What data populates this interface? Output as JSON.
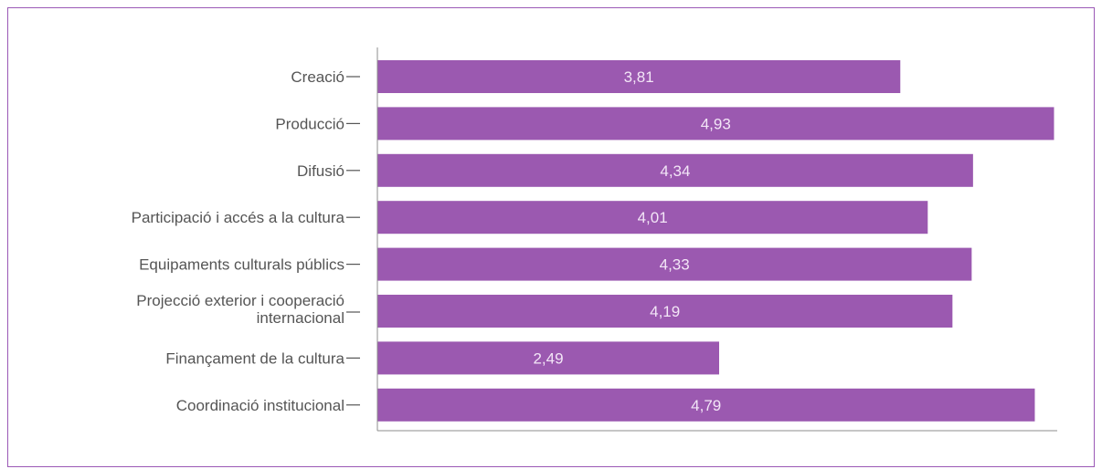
{
  "colors": {
    "bar": "#9b59b0",
    "frame": "#9b59b6",
    "axis": "#8c8c8c",
    "label_text": "#555555",
    "value_text": "#f3e6f7"
  },
  "chart_data": {
    "type": "bar",
    "orientation": "horizontal",
    "categories": [
      [
        "Creació"
      ],
      [
        "Producció"
      ],
      [
        "Difusió"
      ],
      [
        "Participació i accés a la cultura"
      ],
      [
        "Equipaments culturals públics"
      ],
      [
        "Projecció exterior i cooperació",
        "internacional"
      ],
      [
        "Finançament de la cultura"
      ],
      [
        "Coordinació institucional"
      ]
    ],
    "values": [
      3.81,
      4.93,
      4.34,
      4.01,
      4.33,
      4.19,
      2.49,
      4.79
    ],
    "value_labels": [
      "3,81",
      "4,93",
      "4,34",
      "4,01",
      "4,33",
      "4,19",
      "2,49",
      "4,79"
    ],
    "xlim": [
      0,
      5
    ],
    "grid": false,
    "title": "",
    "xlabel": "",
    "ylabel": ""
  }
}
